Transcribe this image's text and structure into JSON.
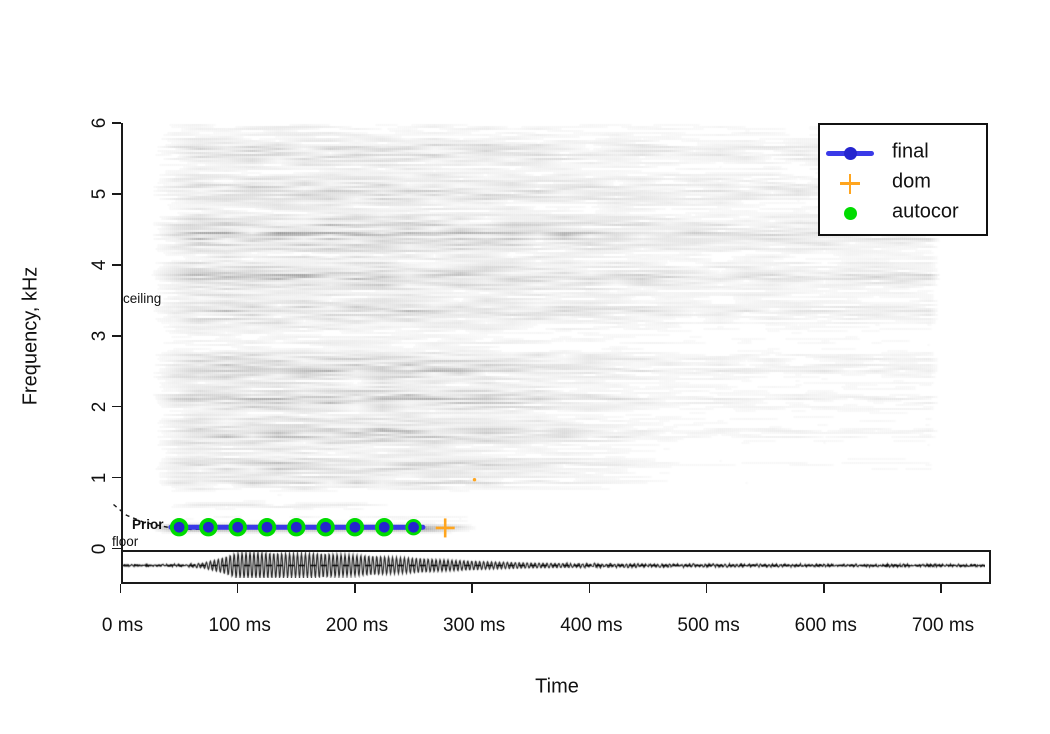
{
  "figure": {
    "background": "#ffffff",
    "kind": "soundgen pitch-tracking spectrogram plot"
  },
  "chart_data": {
    "type": "heatmap",
    "subtype": "spectrogram-with-pitch-track",
    "title": "",
    "xlabel": "Time",
    "ylabel": "Frequency, kHz",
    "x_unit": "ms",
    "xlim_ms": [
      0,
      742
    ],
    "ylim_khz": [
      0,
      6
    ],
    "grid": false,
    "x_ticks": [
      {
        "value": 0,
        "label": "0 ms"
      },
      {
        "value": 100,
        "label": "100 ms"
      },
      {
        "value": 200,
        "label": "200 ms"
      },
      {
        "value": 300,
        "label": "300 ms"
      },
      {
        "value": 400,
        "label": "400 ms"
      },
      {
        "value": 500,
        "label": "500 ms"
      },
      {
        "value": 600,
        "label": "600 ms"
      },
      {
        "value": 700,
        "label": "700 ms"
      }
    ],
    "y_ticks": [
      {
        "value": 0,
        "label": "0"
      },
      {
        "value": 1,
        "label": "1"
      },
      {
        "value": 2,
        "label": "2"
      },
      {
        "value": 3,
        "label": "3"
      },
      {
        "value": 4,
        "label": "4"
      },
      {
        "value": 5,
        "label": "5"
      },
      {
        "value": 6,
        "label": "6"
      }
    ],
    "legend": {
      "position": "top-right",
      "entries": [
        {
          "label": "final",
          "marker": "line-dot",
          "color": "#3a3ae8",
          "dot_color": "#2525cf"
        },
        {
          "label": "dom",
          "marker": "plus",
          "color": "#ffa51e"
        },
        {
          "label": "autocor",
          "marker": "dot",
          "color": "#00dc00"
        }
      ]
    },
    "annotations": [
      {
        "label": "ceiling",
        "freq_khz": 3.5
      },
      {
        "label": "Prior",
        "freq_khz": 0.33
      },
      {
        "label": "floor",
        "freq_khz": 0.18
      }
    ],
    "series": [
      {
        "name": "final",
        "marker": "blue-line-dot",
        "color": "#3a3ae8",
        "line_span_ms": [
          43,
          258
        ],
        "f_khz": 0.3,
        "points_t_ms": [
          50,
          75,
          100,
          125,
          150,
          175,
          200,
          225,
          250
        ],
        "points_f_khz": [
          0.3,
          0.3,
          0.3,
          0.3,
          0.3,
          0.3,
          0.3,
          0.3,
          0.3
        ]
      },
      {
        "name": "autocor",
        "marker": "green-circle",
        "color": "#00dc00",
        "points_t_ms": [
          50,
          75,
          100,
          125,
          150,
          175,
          200,
          225,
          250
        ],
        "points_f_khz": [
          0.3,
          0.3,
          0.3,
          0.3,
          0.3,
          0.3,
          0.3,
          0.3,
          0.3
        ]
      },
      {
        "name": "dom",
        "marker": "orange-plus",
        "color": "#ffa51e",
        "points": [
          {
            "t_ms": 277,
            "f_khz": 0.29,
            "size": "large"
          },
          {
            "t_ms": 302,
            "f_khz": 0.97,
            "size": "tiny"
          }
        ]
      }
    ],
    "prior_curve": {
      "style": "dashed",
      "points_t_f": [
        [
          -6,
          0.62
        ],
        [
          5,
          0.47
        ],
        [
          20,
          0.37
        ],
        [
          40,
          0.3
        ],
        [
          60,
          0.27
        ],
        [
          75,
          0.275
        ]
      ]
    },
    "oscillogram": {
      "zero_line": "dashed",
      "duration_ms": 742,
      "envelope_t_amp": [
        [
          0,
          0.02
        ],
        [
          30,
          0.03
        ],
        [
          55,
          0.07
        ],
        [
          70,
          0.18
        ],
        [
          85,
          0.5
        ],
        [
          98,
          0.9
        ],
        [
          110,
          1.0
        ],
        [
          128,
          0.93
        ],
        [
          148,
          0.88
        ],
        [
          168,
          0.9
        ],
        [
          188,
          0.82
        ],
        [
          210,
          0.72
        ],
        [
          232,
          0.62
        ],
        [
          252,
          0.54
        ],
        [
          272,
          0.44
        ],
        [
          295,
          0.35
        ],
        [
          320,
          0.26
        ],
        [
          350,
          0.19
        ],
        [
          385,
          0.14
        ],
        [
          420,
          0.11
        ],
        [
          470,
          0.085
        ],
        [
          530,
          0.07
        ],
        [
          620,
          0.06
        ],
        [
          742,
          0.05
        ]
      ],
      "carrier_khz": 0.296
    },
    "spectrogram_texture": {
      "t_range_ms": [
        23,
        700
      ],
      "background_level": 0.15,
      "bands": [
        {
          "f_khz": 5.6,
          "hw_khz": 0.3,
          "strength": 0.26
        },
        {
          "f_khz": 5.05,
          "hw_khz": 0.3,
          "strength": 0.3
        },
        {
          "f_khz": 4.45,
          "hw_khz": 0.42,
          "strength": 0.44
        },
        {
          "f_khz": 3.85,
          "hw_khz": 0.32,
          "strength": 0.4
        },
        {
          "f_khz": 3.35,
          "hw_khz": 0.3,
          "strength": 0.32
        },
        {
          "f_khz": 2.55,
          "hw_khz": 0.32,
          "strength": 0.44
        },
        {
          "f_khz": 2.12,
          "hw_khz": 0.24,
          "strength": 0.4
        },
        {
          "f_khz": 1.65,
          "hw_khz": 0.3,
          "strength": 0.44
        },
        {
          "f_khz": 1.18,
          "hw_khz": 0.2,
          "strength": 0.32
        },
        {
          "f_khz": 0.95,
          "hw_khz": 0.12,
          "strength": 0.16
        },
        {
          "f_khz": 0.62,
          "hw_khz": 0.1,
          "strength": 0.22,
          "t0": 30,
          "t1": 230
        },
        {
          "f_khz": 0.45,
          "hw_khz": 0.15,
          "strength": 0.1,
          "t0": 25,
          "t1": 330
        }
      ],
      "f0_band": {
        "f_khz": 0.3,
        "hw_khz": 0.09,
        "strength": 0.95,
        "t_range_ms": [
          25,
          305
        ]
      }
    }
  }
}
